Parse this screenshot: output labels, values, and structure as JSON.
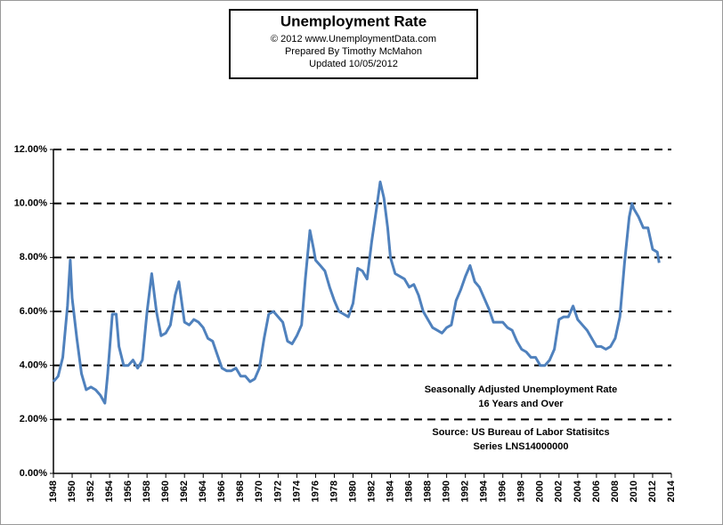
{
  "chart_data": {
    "type": "line",
    "title": "Unemployment Rate",
    "subtitle": [
      "© 2012  www.UnemploymentData.com",
      "Prepared  By Timothy McMahon",
      "Updated  10/05/2012"
    ],
    "annotations": [
      "Seasonally Adjusted Unemployment Rate",
      "16 Years and Over",
      "Source:  US  Bureau of Labor Statisitcs",
      "Series LNS14000000"
    ],
    "color": "#4f81bd",
    "grid": true,
    "xlim": [
      1948,
      2014
    ],
    "xticks": [
      1948,
      1950,
      1952,
      1954,
      1956,
      1958,
      1960,
      1962,
      1964,
      1966,
      1968,
      1970,
      1972,
      1974,
      1976,
      1978,
      1980,
      1982,
      1984,
      1986,
      1988,
      1990,
      1992,
      1994,
      1996,
      1998,
      2000,
      2002,
      2004,
      2006,
      2008,
      2010,
      2012,
      2014
    ],
    "ylim": [
      0,
      12
    ],
    "yticks": [
      {
        "value": 0,
        "label": "0.00%"
      },
      {
        "value": 2,
        "label": "2.00%"
      },
      {
        "value": 4,
        "label": "4.00%"
      },
      {
        "value": 6,
        "label": "6.00%"
      },
      {
        "value": 8,
        "label": "8.00%"
      },
      {
        "value": 10,
        "label": "10.00%"
      },
      {
        "value": 12,
        "label": "12.00%"
      }
    ],
    "x": [
      1948.0,
      1948.5,
      1949.0,
      1949.5,
      1949.8,
      1950.0,
      1950.5,
      1951.0,
      1951.5,
      1952.0,
      1952.5,
      1953.0,
      1953.5,
      1953.8,
      1954.3,
      1954.7,
      1955.0,
      1955.5,
      1956.0,
      1956.5,
      1957.0,
      1957.5,
      1958.0,
      1958.5,
      1959.0,
      1959.5,
      1960.0,
      1960.5,
      1961.0,
      1961.4,
      1962.0,
      1962.5,
      1963.0,
      1963.5,
      1964.0,
      1964.5,
      1965.0,
      1965.5,
      1966.0,
      1966.5,
      1967.0,
      1967.5,
      1968.0,
      1968.5,
      1969.0,
      1969.5,
      1970.0,
      1970.5,
      1971.0,
      1971.5,
      1972.0,
      1972.5,
      1973.0,
      1973.5,
      1974.0,
      1974.5,
      1974.9,
      1975.4,
      1975.8,
      1976.0,
      1976.5,
      1977.0,
      1977.5,
      1978.0,
      1978.5,
      1979.0,
      1979.5,
      1980.0,
      1980.5,
      1981.0,
      1981.5,
      1982.0,
      1982.5,
      1982.9,
      1983.3,
      1983.7,
      1984.0,
      1984.5,
      1985.0,
      1985.5,
      1986.0,
      1986.5,
      1987.0,
      1987.5,
      1988.0,
      1988.5,
      1989.0,
      1989.5,
      1990.0,
      1990.5,
      1991.0,
      1991.5,
      1992.0,
      1992.5,
      1993.0,
      1993.5,
      1994.0,
      1994.5,
      1995.0,
      1995.5,
      1996.0,
      1996.5,
      1997.0,
      1997.5,
      1998.0,
      1998.5,
      1999.0,
      1999.5,
      2000.0,
      2000.5,
      2001.0,
      2001.5,
      2002.0,
      2002.5,
      2003.0,
      2003.5,
      2004.0,
      2004.5,
      2005.0,
      2005.5,
      2006.0,
      2006.5,
      2007.0,
      2007.5,
      2008.0,
      2008.5,
      2009.0,
      2009.5,
      2009.8,
      2010.0,
      2010.5,
      2011.0,
      2011.5,
      2012.0,
      2012.5,
      2012.7
    ],
    "values": [
      3.4,
      3.6,
      4.3,
      6.2,
      7.9,
      6.5,
      5.0,
      3.7,
      3.1,
      3.2,
      3.1,
      2.9,
      2.6,
      3.7,
      5.9,
      5.9,
      4.7,
      4.0,
      4.0,
      4.2,
      3.9,
      4.2,
      6.0,
      7.4,
      6.0,
      5.1,
      5.2,
      5.5,
      6.6,
      7.1,
      5.6,
      5.5,
      5.7,
      5.6,
      5.4,
      5.0,
      4.9,
      4.4,
      3.9,
      3.8,
      3.8,
      3.9,
      3.6,
      3.6,
      3.4,
      3.5,
      3.9,
      5.0,
      5.9,
      6.0,
      5.8,
      5.6,
      4.9,
      4.8,
      5.1,
      5.5,
      7.2,
      9.0,
      8.3,
      7.9,
      7.7,
      7.5,
      6.9,
      6.4,
      6.0,
      5.9,
      5.8,
      6.3,
      7.6,
      7.5,
      7.2,
      8.6,
      9.8,
      10.8,
      10.2,
      9.1,
      8.0,
      7.4,
      7.3,
      7.2,
      6.9,
      7.0,
      6.6,
      6.0,
      5.7,
      5.4,
      5.3,
      5.2,
      5.4,
      5.5,
      6.4,
      6.8,
      7.3,
      7.7,
      7.1,
      6.9,
      6.5,
      6.1,
      5.6,
      5.6,
      5.6,
      5.4,
      5.3,
      4.9,
      4.6,
      4.5,
      4.3,
      4.3,
      4.0,
      4.0,
      4.2,
      4.6,
      5.7,
      5.8,
      5.8,
      6.2,
      5.7,
      5.5,
      5.3,
      5.0,
      4.7,
      4.7,
      4.6,
      4.7,
      5.0,
      5.8,
      7.8,
      9.5,
      10.0,
      9.8,
      9.5,
      9.1,
      9.1,
      8.3,
      8.2,
      7.8
    ]
  }
}
